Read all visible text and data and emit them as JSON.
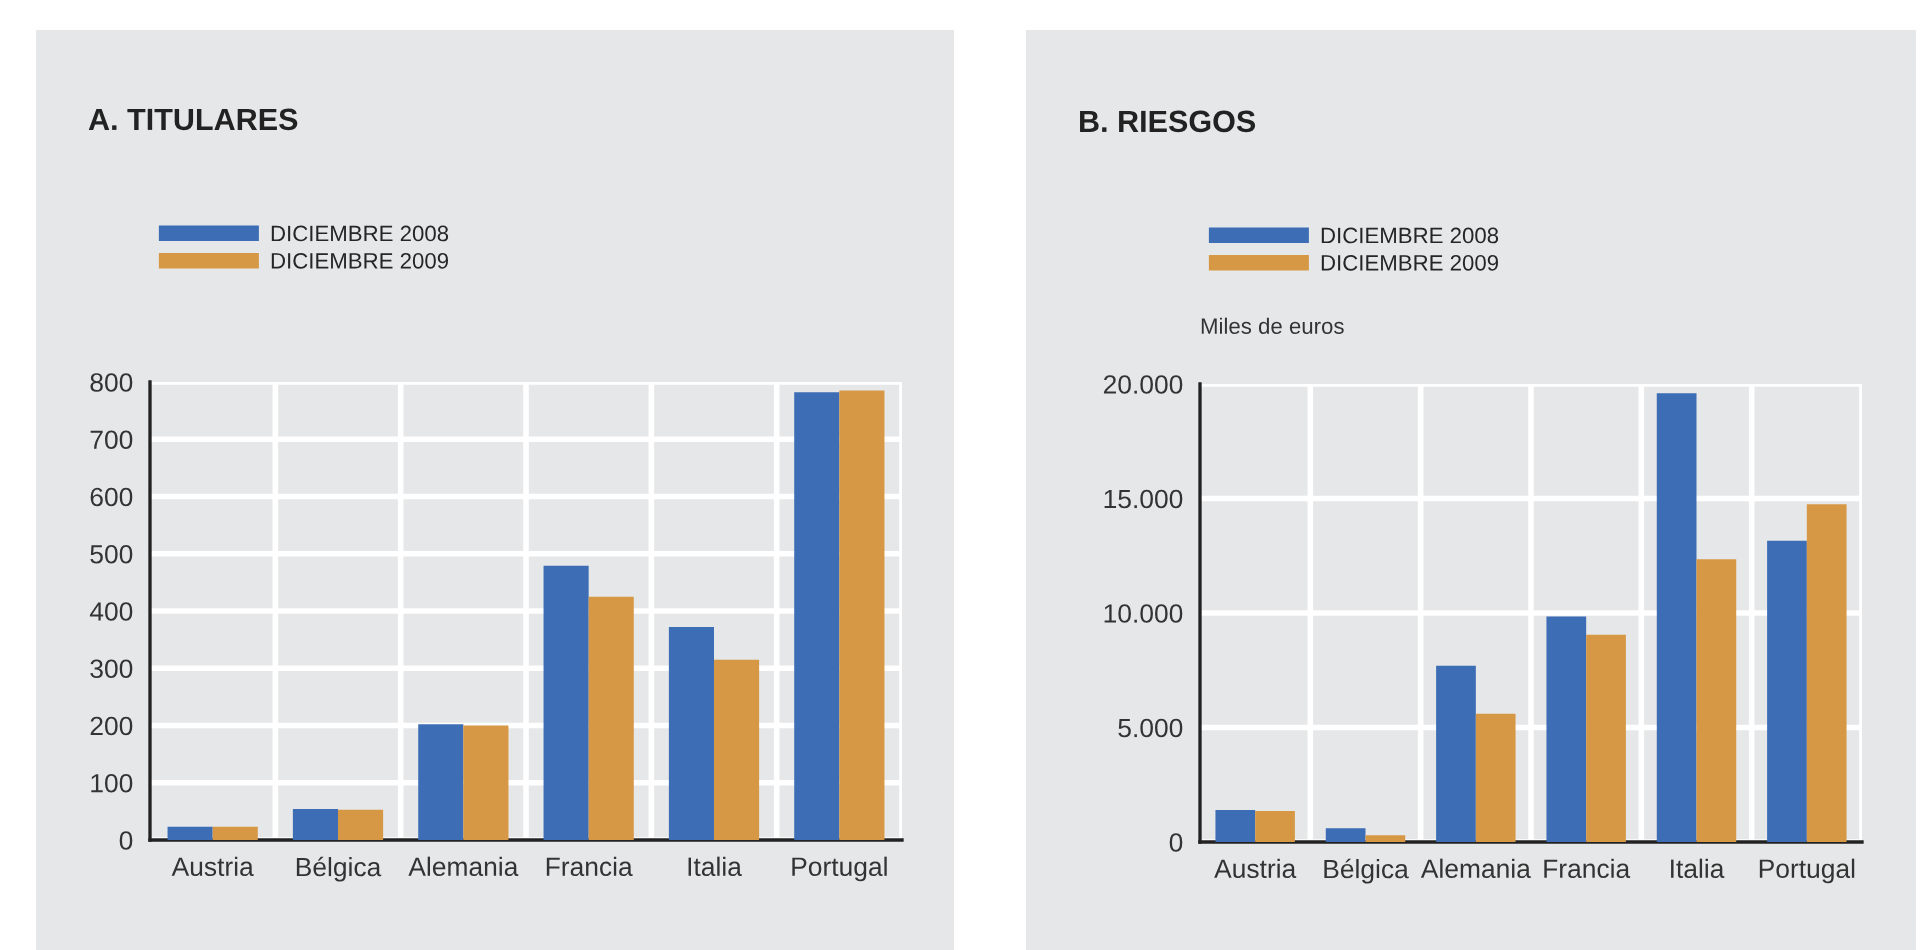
{
  "chart_data": [
    {
      "type": "bar",
      "title": "A. TITULARES",
      "categories": [
        "Austria",
        "Bélgica",
        "Alemania",
        "Francia",
        "Italia",
        "Portugal"
      ],
      "series": [
        {
          "name": "DICIEMBRE 2008",
          "color": "#3c6db5",
          "values": [
            23,
            54,
            202,
            479,
            372,
            782
          ]
        },
        {
          "name": "DICIEMBRE 2009",
          "color": "#d69845",
          "values": [
            23,
            53,
            200,
            425,
            315,
            785
          ]
        }
      ],
      "ylim": [
        0,
        800
      ],
      "yticks": [
        0,
        100,
        200,
        300,
        400,
        500,
        600,
        700,
        800
      ],
      "grid": true,
      "legend": "top left"
    },
    {
      "type": "bar",
      "title": "B. RIESGOS",
      "ylabel": "Miles de euros",
      "categories": [
        "Austria",
        "Bélgica",
        "Alemania",
        "Francia",
        "Italia",
        "Portugal"
      ],
      "series": [
        {
          "name": "DICIEMBRE 2008",
          "color": "#3c6db5",
          "values": [
            1400,
            600,
            7700,
            9850,
            19600,
            13150
          ]
        },
        {
          "name": "DICIEMBRE 2009",
          "color": "#d69845",
          "values": [
            1350,
            300,
            5600,
            9050,
            12350,
            14750
          ]
        }
      ],
      "ylim": [
        0,
        20000
      ],
      "yticks": [
        0,
        {
          "value": 5000,
          "label": "5.000"
        },
        {
          "value": 10000,
          "label": "10.000"
        },
        {
          "value": 15000,
          "label": "15.000"
        },
        {
          "value": 20000,
          "label": "20.000"
        }
      ],
      "grid": true,
      "legend": "top left"
    }
  ]
}
